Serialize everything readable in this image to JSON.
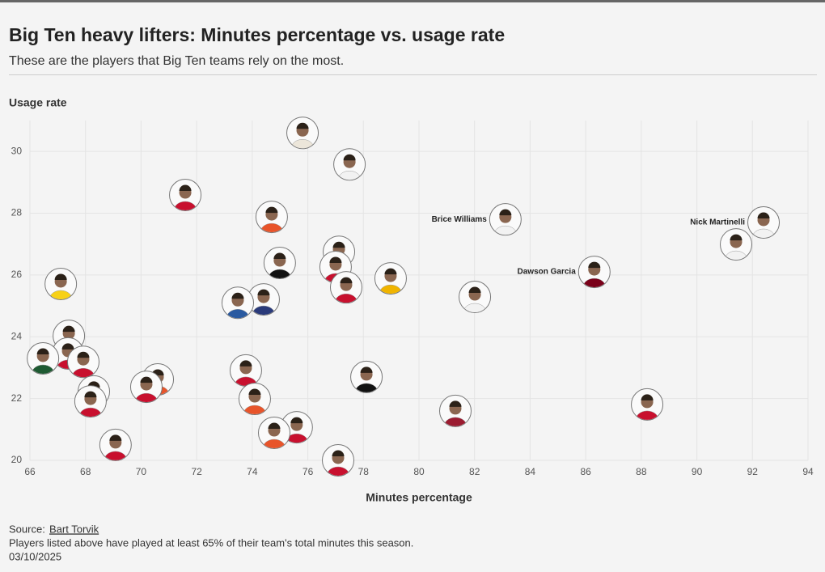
{
  "chart_data": {
    "type": "scatter",
    "title": "Big Ten heavy lifters: Minutes percentage vs. usage rate",
    "subtitle": "These are the players that Big Ten teams rely on the most.",
    "xlabel": "Minutes percentage",
    "ylabel": "Usage rate",
    "xlim": [
      66,
      94
    ],
    "ylim": [
      20,
      31
    ],
    "xticks": [
      66,
      68,
      70,
      72,
      74,
      76,
      78,
      80,
      82,
      84,
      86,
      88,
      90,
      92,
      94
    ],
    "yticks": [
      20,
      22,
      24,
      26,
      28,
      30
    ],
    "grid": true,
    "x": [
      75.81,
      77.5,
      71.59,
      74.7,
      83.11,
      92.4,
      91.41,
      77.12,
      74.99,
      77.0,
      86.31,
      78.98,
      67.11,
      77.38,
      82.01,
      74.41,
      73.48,
      67.4,
      67.37,
      66.47,
      67.92,
      73.77,
      78.11,
      70.6,
      70.19,
      68.3,
      74.09,
      68.18,
      88.21,
      81.31,
      75.6,
      74.79,
      69.08,
      77.09
    ],
    "values": [
      30.6,
      29.58,
      28.59,
      27.88,
      27.8,
      27.7,
      26.99,
      26.75,
      26.39,
      26.26,
      26.1,
      25.89,
      25.71,
      25.6,
      25.29,
      25.21,
      25.1,
      24.03,
      23.46,
      23.3,
      23.19,
      22.91,
      22.7,
      22.62,
      22.38,
      22.23,
      21.99,
      21.91,
      21.81,
      21.6,
      21.07,
      20.89,
      20.5,
      20.0
    ],
    "labels": [
      null,
      null,
      null,
      null,
      "Brice Williams",
      "Nick Martinelli",
      null,
      null,
      null,
      null,
      "Dawson Garcia",
      null,
      null,
      null,
      null,
      null,
      null,
      null,
      null,
      null,
      null,
      null,
      null,
      null,
      null,
      null,
      null,
      null,
      null,
      null,
      null,
      null,
      null,
      null
    ],
    "colors": [
      "#ece6da",
      "#f2f2f2",
      "#c8102e",
      "#e8542a",
      "#f2f2f2",
      "#f2f2f2",
      "#f2f2f2",
      "#c8102e",
      "#111111",
      "#c8102e",
      "#7a0019",
      "#f0b400",
      "#f7d117",
      "#c8102e",
      "#f2f2f2",
      "#2a3a7a",
      "#2a5aa0",
      "#c8102e",
      "#c8102e",
      "#1e5a32",
      "#c8102e",
      "#c8102e",
      "#111111",
      "#e8542a",
      "#c8102e",
      "#c8102e",
      "#e8542a",
      "#c8102e",
      "#c8102e",
      "#9b1b30",
      "#c8102e",
      "#e8542a",
      "#c8102e",
      "#c8102e"
    ],
    "source_label": "Source:",
    "source": "Bart Torvik",
    "note": "Players listed above have played at least 65% of their team's total minutes this season.",
    "date": "03/10/2025"
  }
}
